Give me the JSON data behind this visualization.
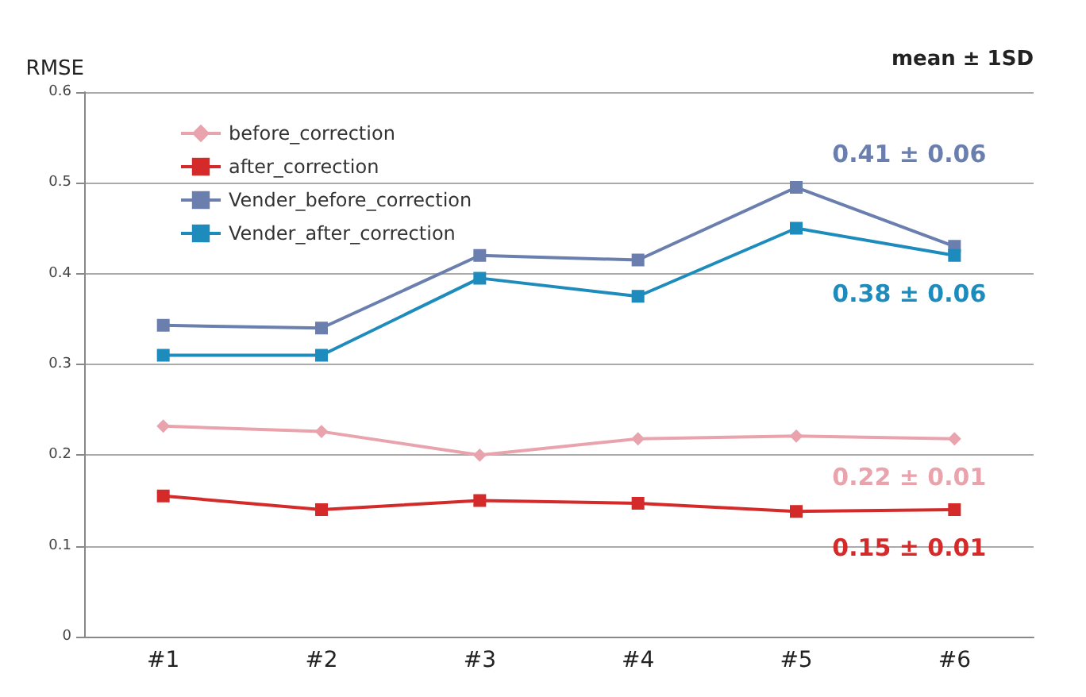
{
  "chart_data": {
    "type": "line",
    "ylabel": "RMSE",
    "categories": [
      "#1",
      "#2",
      "#3",
      "#4",
      "#5",
      "#6"
    ],
    "series": [
      {
        "name": "before_correction",
        "color": "#e8a3ad",
        "marker": "diamond",
        "values": [
          0.232,
          0.226,
          0.2,
          0.218,
          0.221,
          0.218
        ]
      },
      {
        "name": "after_correction",
        "color": "#d42a2a",
        "marker": "square",
        "values": [
          0.155,
          0.14,
          0.15,
          0.147,
          0.138,
          0.14
        ]
      },
      {
        "name": "Vender_before_correction",
        "color": "#6a7fae",
        "marker": "square",
        "values": [
          0.343,
          0.34,
          0.42,
          0.415,
          0.495,
          0.43
        ]
      },
      {
        "name": "Vender_after_correction",
        "color": "#1e8bbd",
        "marker": "square",
        "values": [
          0.31,
          0.31,
          0.395,
          0.375,
          0.45,
          0.42
        ]
      }
    ],
    "ylim": [
      0,
      0.6
    ],
    "yticks": [
      0,
      0.1,
      0.2,
      0.3,
      0.4,
      0.5,
      0.6
    ],
    "grid": "y",
    "legend": "top left",
    "annotations": [
      "mean ± 1SD",
      "0.41 ± 0.06",
      "0.38 ± 0.06",
      "0.22 ± 0.01",
      "0.15 ± 0.01"
    ]
  }
}
